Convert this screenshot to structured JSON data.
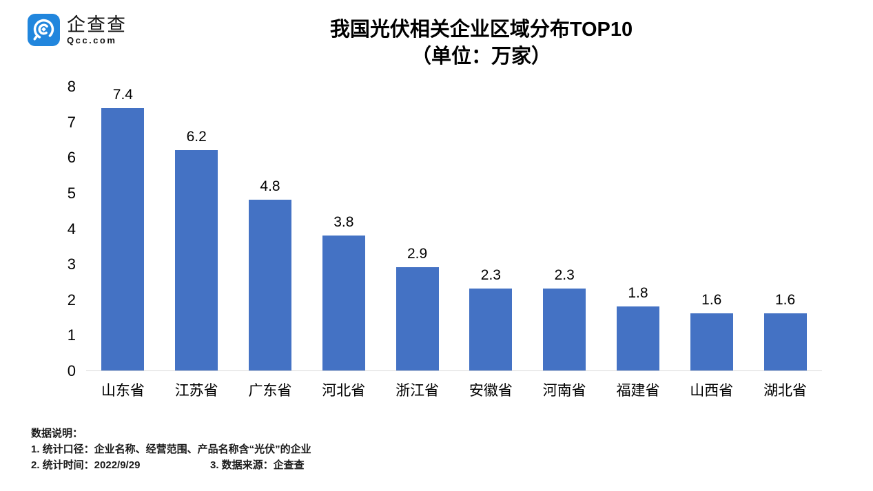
{
  "logo": {
    "name": "企查查",
    "domain": "Qcc.com",
    "brand_color": "#2186DD"
  },
  "title": {
    "line1": "我国光伏相关企业区域分布TOP10",
    "line2": "（单位：万家）"
  },
  "chart_data": {
    "type": "bar",
    "title": "我国光伏相关企业区域分布TOP10（单位：万家）",
    "categories": [
      "山东省",
      "江苏省",
      "广东省",
      "河北省",
      "浙江省",
      "安徽省",
      "河南省",
      "福建省",
      "山西省",
      "湖北省"
    ],
    "values": [
      7.4,
      6.2,
      4.8,
      3.8,
      2.9,
      2.3,
      2.3,
      1.8,
      1.6,
      1.6
    ],
    "xlabel": "",
    "ylabel": "",
    "ylim": [
      0,
      8
    ],
    "yticks": [
      0,
      1,
      2,
      3,
      4,
      5,
      6,
      7,
      8
    ],
    "grid": false,
    "legend": false,
    "value_labels": true,
    "bar_color": "#4472C4",
    "axis_line_color": "#D9D9D9"
  },
  "footer": {
    "heading": "数据说明：",
    "note1": "1. 统计口径：企业名称、经营范围、产品名称含“光伏”的企业",
    "note2": "2. 统计时间：2022/9/29",
    "note3": "3. 数据来源：企查查"
  }
}
